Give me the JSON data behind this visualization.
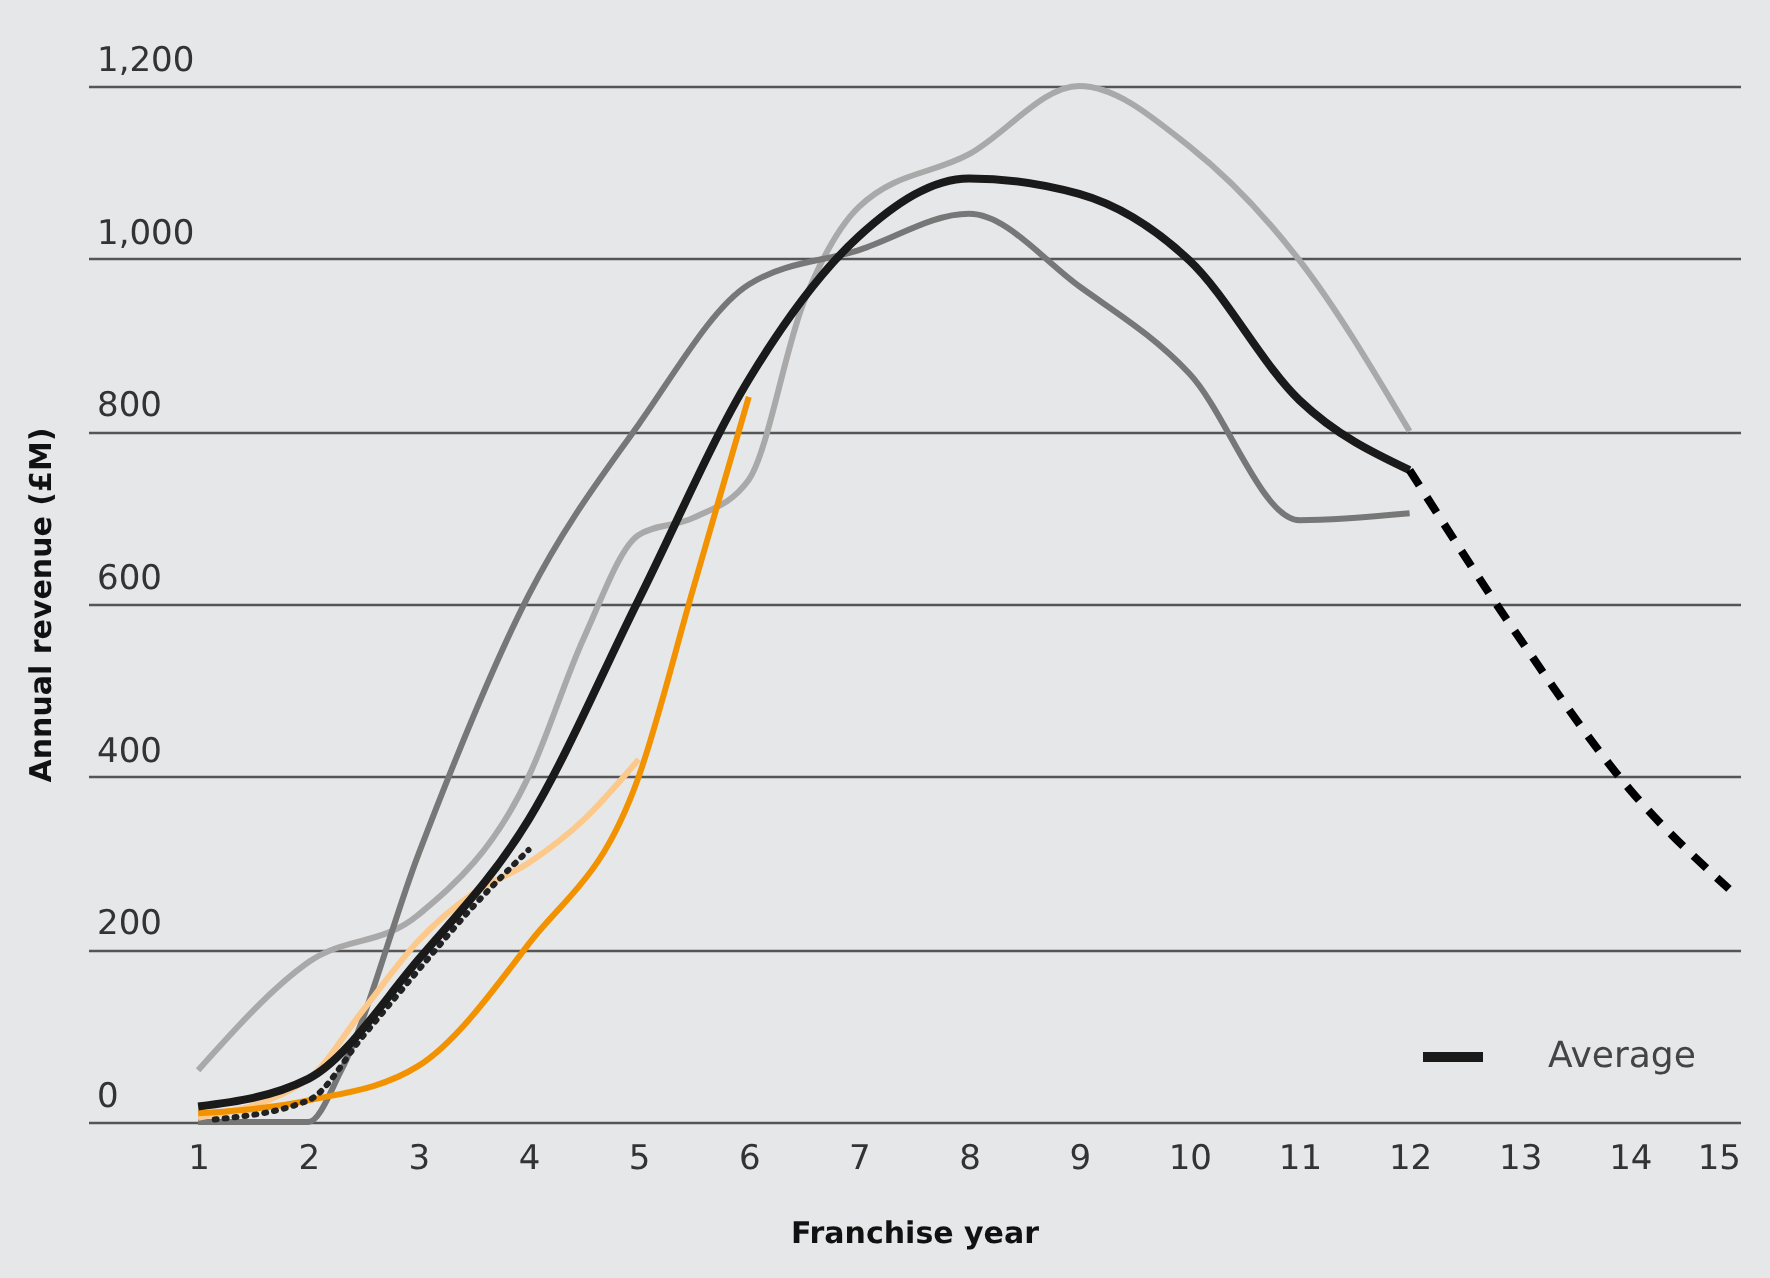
{
  "chart_data": {
    "type": "line",
    "xlabel": "Franchise year",
    "ylabel": "Annual revenue (£M)",
    "xlim": [
      0,
      15
    ],
    "xticks": [
      1,
      2,
      3,
      4,
      5,
      6,
      7,
      8,
      9,
      10,
      11,
      12,
      13,
      14,
      15
    ],
    "ylim": [
      0,
      1200
    ],
    "yticks": [
      {
        "value": 0,
        "label": "0"
      },
      {
        "value": 200,
        "label": "200"
      },
      {
        "value": 400,
        "label": "400"
      },
      {
        "value": 600,
        "label": "600"
      },
      {
        "value": 800,
        "label": "800"
      },
      {
        "value": 1000,
        "label": "1,000"
      },
      {
        "value": 1200,
        "label": "1,200"
      }
    ],
    "grid": "y",
    "legend": "bottom right",
    "series": [
      {
        "color": "#a9a9a9",
        "line_style": "solid",
        "x": [
          1,
          2,
          3,
          4,
          4.5,
          5,
          5.5,
          6,
          6.5,
          7,
          8,
          9,
          10,
          11,
          12
        ],
        "values": [
          60,
          185,
          240,
          400,
          560,
          680,
          700,
          744,
          950,
          1060,
          1121,
          1200,
          1130,
          998,
          800
        ]
      },
      {
        "color": "#777777",
        "line_style": "solid",
        "x": [
          1,
          2,
          2.3,
          3,
          4,
          5,
          6,
          7,
          8,
          9,
          10,
          11,
          12
        ],
        "values": [
          0,
          0,
          60,
          310,
          610,
          808,
          970,
          1010,
          1052,
          968,
          867,
          697,
          705
        ]
      },
      {
        "color": "#fcc98a",
        "line_style": "solid",
        "x": [
          1,
          2,
          2.5,
          3,
          3.5,
          4,
          4.5,
          5
        ],
        "values": [
          5,
          50,
          130,
          210,
          265,
          300,
          350,
          420
        ]
      },
      {
        "color": "#f39200",
        "line_style": "solid",
        "x": [
          1,
          2,
          3,
          4,
          5,
          5.5,
          6
        ],
        "values": [
          10,
          25,
          65,
          206,
          400,
          620,
          840
        ]
      },
      {
        "color": "#222222",
        "line_style": "dotted",
        "x": [
          1.15,
          2,
          2.5,
          3,
          3.5,
          4
        ],
        "values": [
          3,
          25,
          100,
          176,
          250,
          315
        ]
      },
      {
        "name": "Average",
        "color": "#1a1a1a",
        "line_style": "solid",
        "x": [
          1,
          2,
          3,
          4,
          5,
          6,
          7,
          8,
          9,
          10,
          11,
          12
        ],
        "values": [
          18,
          50,
          188,
          350,
          605,
          860,
          1026,
          1093,
          1075,
          998,
          836,
          755
        ]
      },
      {
        "color": "#000000",
        "line_style": "dashed",
        "x": [
          12,
          13,
          14,
          14.9
        ],
        "values": [
          755,
          560,
          385,
          270
        ]
      }
    ]
  }
}
